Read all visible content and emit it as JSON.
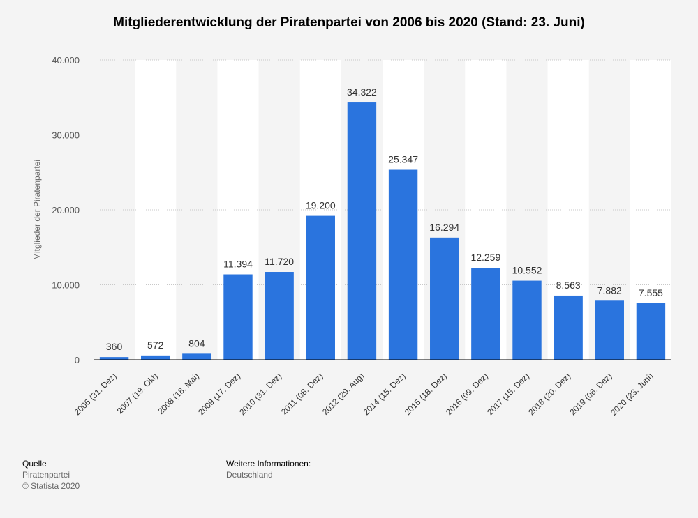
{
  "chart_data": {
    "type": "bar",
    "title": "Mitgliederentwicklung der Piratenpartei von 2006 bis 2020 (Stand: 23. Juni)",
    "ylabel": "Mitglieder der Piratenpartei",
    "xlabel": "",
    "categories": [
      "2006 (31. Dez)",
      "2007 (19. Okt)",
      "2008 (18. Mai)",
      "2009 (17. Dez)",
      "2010 (31. Dez)",
      "2011 (08. Dez)",
      "2012 (29. Aug)",
      "2014 (15. Dez)",
      "2015 (18. Dez)",
      "2016 (09. Dez)",
      "2017 (15. Dez)",
      "2018 (20. Dez)",
      "2019 (06. Dez)",
      "2020 (23. Juni)"
    ],
    "values": [
      360,
      572,
      804,
      11394,
      11720,
      19200,
      34322,
      25347,
      16294,
      12259,
      10552,
      8563,
      7882,
      7555
    ],
    "value_labels": [
      "360",
      "572",
      "804",
      "11.394",
      "11.720",
      "19.200",
      "34.322",
      "25.347",
      "16.294",
      "12.259",
      "10.552",
      "8.563",
      "7.882",
      "7.555"
    ],
    "ylim": [
      0,
      40000
    ],
    "yticks": [
      0,
      10000,
      20000,
      30000,
      40000
    ],
    "ytick_labels": [
      "0",
      "10.000",
      "20.000",
      "30.000",
      "40.000"
    ],
    "bar_color": "#2a74de",
    "grid": true,
    "legend": "none"
  },
  "footer": {
    "source_heading": "Quelle",
    "source_name": "Piratenpartei",
    "copyright": "© Statista 2020",
    "info_heading": "Weitere Informationen:",
    "info_value": "Deutschland"
  }
}
